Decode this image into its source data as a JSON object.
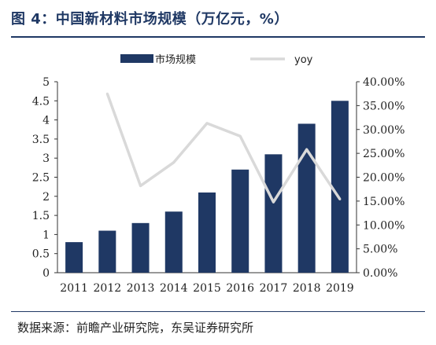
{
  "header": {
    "title": "图 4：中国新材料市场规模（万亿元，%）",
    "source": "数据来源：前瞻产业研究院，东吴证券研究所"
  },
  "colors": {
    "bar": "#1f3864",
    "line": "#d9d9d9",
    "accent": "#1f3864"
  },
  "chart_data": {
    "type": "bar",
    "title": "",
    "categories": [
      "2011",
      "2012",
      "2013",
      "2014",
      "2015",
      "2016",
      "2017",
      "2018",
      "2019"
    ],
    "series": [
      {
        "name": "市场规模",
        "type": "bar",
        "axis": "left",
        "values": [
          0.8,
          1.1,
          1.3,
          1.6,
          2.1,
          2.7,
          3.1,
          3.9,
          4.5
        ]
      },
      {
        "name": "yoy",
        "type": "line",
        "axis": "right",
        "values": [
          null,
          37.5,
          18.2,
          23.1,
          31.3,
          28.6,
          14.8,
          25.8,
          15.4
        ]
      }
    ],
    "y_left": {
      "min": 0,
      "max": 5,
      "ticks": [
        "0",
        "0.5",
        "1",
        "1.5",
        "2",
        "2.5",
        "3",
        "3.5",
        "4",
        "4.5",
        "5"
      ]
    },
    "y_right": {
      "min": 0,
      "max": 40,
      "ticks": [
        "0.00%",
        "5.00%",
        "10.00%",
        "15.00%",
        "20.00%",
        "25.00%",
        "30.00%",
        "35.00%",
        "40.00%"
      ]
    },
    "legend": "top",
    "grid": false
  }
}
